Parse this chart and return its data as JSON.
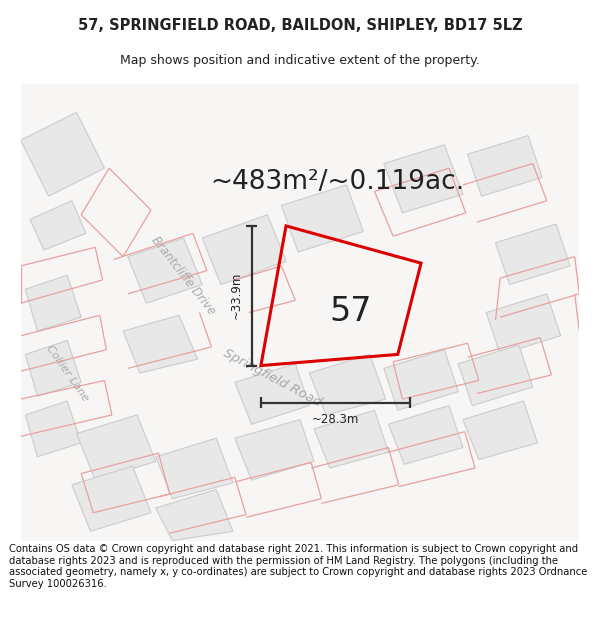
{
  "title": "57, SPRINGFIELD ROAD, BAILDON, SHIPLEY, BD17 5LZ",
  "subtitle": "Map shows position and indicative extent of the property.",
  "area_label": "~483m²/~0.119ac.",
  "number_label": "57",
  "dim_horiz": "~28.3m",
  "dim_vert": "~33.9m",
  "road_label_1": "Brantcliffe Drive",
  "road_label_2": "Springfield Road",
  "road_label_3": "Collier Lane",
  "footer": "Contains OS data © Crown copyright and database right 2021. This information is subject to Crown copyright and database rights 2023 and is reproduced with the permission of HM Land Registry. The polygons (including the associated geometry, namely x, y co-ordinates) are subject to Crown copyright and database rights 2023 Ordnance Survey 100026316.",
  "map_bg": "#f7f6f4",
  "block_fill": "#e8e8e8",
  "block_edge": "#cccccc",
  "pink_color": "#e8a0a0",
  "red_color": "#dd0000",
  "dim_color": "#333333",
  "text_color": "#222222",
  "road_text_color": "#aaaaaa",
  "white": "#ffffff",
  "title_fontsize": 10.5,
  "subtitle_fontsize": 9,
  "area_fontsize": 19,
  "number_fontsize": 24,
  "footer_fontsize": 7.2,
  "road_fs": 8.5
}
